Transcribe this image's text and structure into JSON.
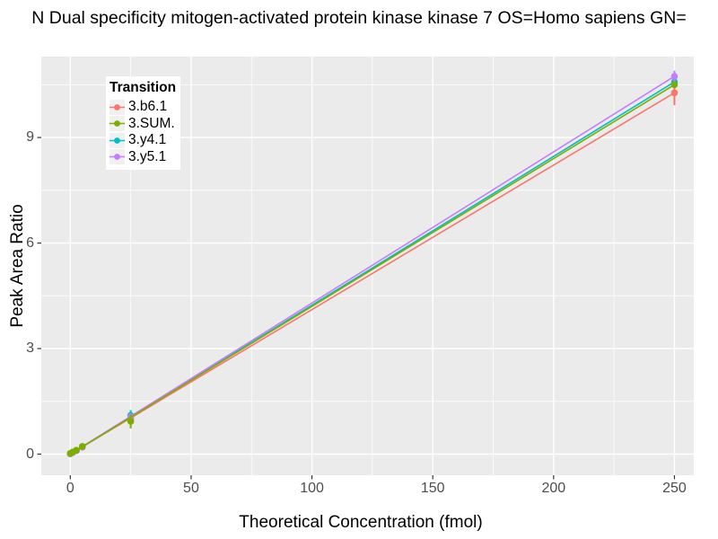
{
  "title": "N Dual specificity mitogen-activated protein kinase kinase 7 OS=Homo sapiens GN=",
  "axes": {
    "x_label": "Theoretical Concentration (fmol)",
    "y_label": "Peak Area Ratio"
  },
  "legend": {
    "title": "Transition",
    "items": [
      {
        "label": "3.b6.1",
        "color": "#F8766D"
      },
      {
        "label": "3.SUM.",
        "color": "#7CAE00"
      },
      {
        "label": "3.y4.1",
        "color": "#00BFC4"
      },
      {
        "label": "3.y5.1",
        "color": "#C77CFF"
      }
    ]
  },
  "colors": {
    "panel_bg": "#EBEBEB",
    "grid": "#FFFFFF",
    "tick": "#333333",
    "tick_label": "#4D4D4D",
    "legend_bg": "#FFFFFF",
    "legend_key_bg": "#F0F0F0"
  },
  "chart_data": {
    "type": "line",
    "title": "N Dual specificity mitogen-activated protein kinase kinase 7 OS=Homo sapiens GN=",
    "xlabel": "Theoretical Concentration (fmol)",
    "ylabel": "Peak Area Ratio",
    "xlim": [
      -12,
      258
    ],
    "ylim": [
      -0.6,
      11.3
    ],
    "x_ticks": [
      0,
      50,
      100,
      150,
      200,
      250
    ],
    "x_minor": [
      25,
      75,
      125,
      175,
      225
    ],
    "y_ticks": [
      0,
      3,
      6,
      9
    ],
    "y_minor": [
      1.5,
      4.5,
      7.5,
      10.5
    ],
    "grid": true,
    "legend_position": "top-left-inside",
    "series": [
      {
        "name": "3.b6.1",
        "color": "#F8766D",
        "line": {
          "x": [
            0,
            250
          ],
          "y": [
            0,
            10.27
          ]
        },
        "points": [
          [
            0,
            0.01,
            0
          ],
          [
            1,
            0.05,
            0
          ],
          [
            2.5,
            0.1,
            0
          ],
          [
            5,
            0.2,
            0
          ],
          [
            25,
            1.0,
            0.08
          ],
          [
            250,
            10.27,
            0.35
          ]
        ]
      },
      {
        "name": "3.y4.1",
        "color": "#00BFC4",
        "line": {
          "x": [
            0,
            250
          ],
          "y": [
            0,
            10.58
          ]
        },
        "points": [
          [
            0,
            0.01,
            0
          ],
          [
            1,
            0.05,
            0
          ],
          [
            2.5,
            0.1,
            0
          ],
          [
            5,
            0.21,
            0
          ],
          [
            25,
            1.1,
            0.15
          ],
          [
            250,
            10.58,
            0.05
          ]
        ]
      },
      {
        "name": "3.y5.1",
        "color": "#C77CFF",
        "line": {
          "x": [
            0,
            250
          ],
          "y": [
            0,
            10.74
          ]
        },
        "points": [
          [
            0,
            0.01,
            0
          ],
          [
            1,
            0.05,
            0
          ],
          [
            2.5,
            0.1,
            0
          ],
          [
            5,
            0.21,
            0
          ],
          [
            25,
            1.06,
            0.1
          ],
          [
            250,
            10.74,
            0.16
          ]
        ]
      },
      {
        "name": "3.SUM.",
        "color": "#7CAE00",
        "line": {
          "x": [
            0,
            250
          ],
          "y": [
            0,
            10.5
          ]
        },
        "points": [
          [
            0,
            0.02,
            0
          ],
          [
            1,
            0.06,
            0
          ],
          [
            2.5,
            0.11,
            0
          ],
          [
            5,
            0.22,
            0
          ],
          [
            25,
            0.93,
            0.2
          ],
          [
            250,
            10.5,
            0.05
          ]
        ]
      }
    ]
  }
}
